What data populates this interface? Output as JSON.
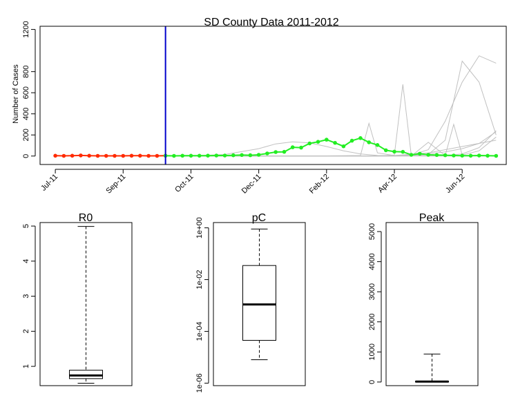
{
  "chart_data": [
    {
      "type": "line",
      "title": "SD County Data 2011-2012",
      "xlabel": "",
      "ylabel": "Number of Cases",
      "ylim": [
        -80,
        1230
      ],
      "yticks": [
        0,
        200,
        400,
        600,
        800,
        1200
      ],
      "x_tick_labels": [
        "Jul-11",
        "Sep-11",
        "Oct-11",
        "Dec-11",
        "Feb-12",
        "Apr-12",
        "Jun-12"
      ],
      "x_tick_weeks": [
        0,
        8,
        16,
        24,
        32,
        40,
        48
      ],
      "grid": false,
      "cutoff_week": 13,
      "colors": {
        "observed_fit": "#ff2a00",
        "observed_forecast": "#22ee22",
        "cutoff_line": "#0000cc",
        "simulations": "#c0c0c0"
      },
      "series": [
        {
          "role": "observed-before-cutoff",
          "x": [
            0,
            1,
            2,
            3,
            4,
            5,
            6,
            7,
            8,
            9,
            10,
            11,
            12,
            13
          ],
          "values": [
            3,
            2,
            3,
            6,
            3,
            2,
            2,
            2,
            2,
            3,
            3,
            2,
            2,
            3
          ]
        },
        {
          "role": "observed-after-cutoff",
          "x": [
            13,
            14,
            15,
            16,
            17,
            18,
            19,
            20,
            21,
            22,
            23,
            24,
            25,
            26,
            27,
            28,
            29,
            30,
            31,
            32,
            33,
            34,
            35,
            36,
            37,
            38,
            39,
            40,
            41,
            42,
            43,
            44,
            45,
            46,
            47,
            48,
            49,
            50,
            51,
            52
          ],
          "values": [
            3,
            2,
            3,
            3,
            3,
            4,
            5,
            5,
            7,
            10,
            8,
            12,
            25,
            38,
            40,
            83,
            80,
            120,
            135,
            155,
            125,
            92,
            145,
            170,
            130,
            105,
            55,
            42,
            40,
            12,
            22,
            12,
            10,
            8,
            5,
            4,
            3,
            5,
            3,
            2
          ]
        },
        {
          "role": "simulation",
          "x": [
            13,
            16,
            20,
            24,
            26,
            28,
            30,
            32,
            34,
            36,
            38,
            40,
            44,
            48,
            52
          ],
          "values": [
            0,
            2,
            15,
            70,
            115,
            135,
            125,
            90,
            50,
            20,
            6,
            2,
            0,
            0,
            0
          ]
        },
        {
          "role": "simulation",
          "x": [
            13,
            30,
            36,
            37,
            38,
            40,
            42,
            44,
            46,
            48,
            50,
            52
          ],
          "values": [
            0,
            0,
            5,
            310,
            30,
            5,
            10,
            20,
            40,
            70,
            120,
            230
          ]
        },
        {
          "role": "simulation",
          "x": [
            13,
            38,
            40,
            41,
            42,
            44,
            46,
            48,
            50,
            52
          ],
          "values": [
            0,
            0,
            10,
            680,
            5,
            0,
            5,
            20,
            80,
            240
          ]
        },
        {
          "role": "simulation",
          "x": [
            13,
            40,
            42,
            44,
            46,
            48,
            50,
            52
          ],
          "values": [
            0,
            0,
            10,
            60,
            330,
            700,
            950,
            880
          ]
        },
        {
          "role": "simulation",
          "x": [
            13,
            40,
            42,
            44,
            46,
            48,
            50,
            52
          ],
          "values": [
            0,
            0,
            2,
            15,
            150,
            900,
            700,
            200
          ]
        },
        {
          "role": "simulation",
          "x": [
            13,
            42,
            44,
            46,
            47,
            48,
            50,
            52
          ],
          "values": [
            0,
            0,
            130,
            5,
            300,
            10,
            50,
            180
          ]
        },
        {
          "role": "simulation",
          "x": [
            13,
            36,
            40,
            44,
            48,
            52
          ],
          "values": [
            0,
            0,
            5,
            30,
            90,
            150
          ]
        }
      ]
    },
    {
      "type": "boxplot",
      "title": "R0",
      "ylim": [
        0.45,
        5.1
      ],
      "log_scale": false,
      "yticks": [
        1,
        2,
        3,
        4,
        5
      ],
      "ytick_labels": [
        "1",
        "2",
        "3",
        "4",
        "5"
      ],
      "whisker_low": 0.52,
      "q1": 0.65,
      "median": 0.74,
      "q3": 0.89,
      "whisker_high": 4.99
    },
    {
      "type": "boxplot",
      "title": "pC",
      "ylim": [
        8e-07,
        1.6
      ],
      "log_scale": true,
      "yticks": [
        1e-06,
        0.0001,
        0.01,
        1
      ],
      "ytick_labels": [
        "1e-06",
        "1e-04",
        "1e-02",
        "1e+00"
      ],
      "whisker_low": 8e-06,
      "q1": 4.5e-05,
      "median": 0.0011,
      "q3": 0.035,
      "whisker_high": 0.9
    },
    {
      "type": "boxplot",
      "title": "Peak",
      "ylim": [
        -120,
        5300
      ],
      "log_scale": false,
      "yticks": [
        0,
        1000,
        2000,
        3000,
        4000,
        5000
      ],
      "ytick_labels": [
        "0",
        "1000",
        "2000",
        "3000",
        "4000",
        "5000"
      ],
      "whisker_low": 0,
      "q1": 5,
      "median": 15,
      "q3": 25,
      "whisker_high": 930
    }
  ]
}
